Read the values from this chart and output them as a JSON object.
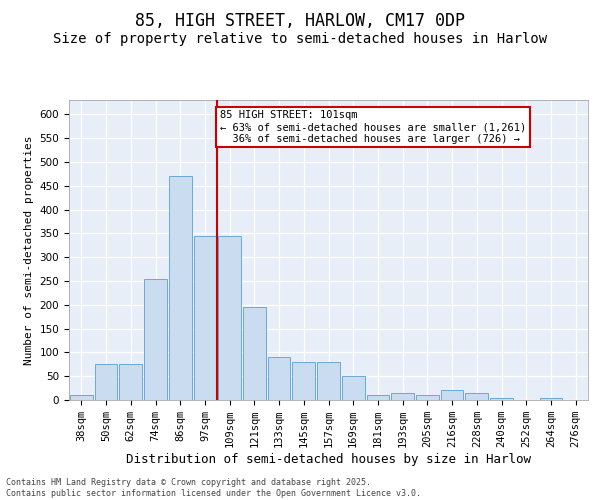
{
  "title1": "85, HIGH STREET, HARLOW, CM17 0DP",
  "title2": "Size of property relative to semi-detached houses in Harlow",
  "xlabel": "Distribution of semi-detached houses by size in Harlow",
  "ylabel": "Number of semi-detached properties",
  "categories": [
    "38sqm",
    "50sqm",
    "62sqm",
    "74sqm",
    "86sqm",
    "97sqm",
    "109sqm",
    "121sqm",
    "133sqm",
    "145sqm",
    "157sqm",
    "169sqm",
    "181sqm",
    "193sqm",
    "205sqm",
    "216sqm",
    "228sqm",
    "240sqm",
    "252sqm",
    "264sqm",
    "276sqm"
  ],
  "values": [
    10,
    75,
    75,
    255,
    470,
    345,
    345,
    195,
    90,
    80,
    80,
    50,
    10,
    15,
    10,
    20,
    15,
    5,
    0,
    5,
    0
  ],
  "bar_color": "#c9dcf0",
  "bar_edge_color": "#6aaad4",
  "vline_pos": 5.5,
  "vline_color": "#cc0000",
  "annotation_text": "85 HIGH STREET: 101sqm\n← 63% of semi-detached houses are smaller (1,261)\n  36% of semi-detached houses are larger (726) →",
  "annotation_box_color": "#cc0000",
  "footer": "Contains HM Land Registry data © Crown copyright and database right 2025.\nContains public sector information licensed under the Open Government Licence v3.0.",
  "ylim": [
    0,
    630
  ],
  "yticks": [
    0,
    50,
    100,
    150,
    200,
    250,
    300,
    350,
    400,
    450,
    500,
    550,
    600
  ],
  "bg_color": "#e8eef8",
  "title1_fontsize": 12,
  "title2_fontsize": 10,
  "ylabel_fontsize": 8,
  "xlabel_fontsize": 9,
  "tick_fontsize": 7.5,
  "footer_fontsize": 6,
  "annot_fontsize": 7.5
}
